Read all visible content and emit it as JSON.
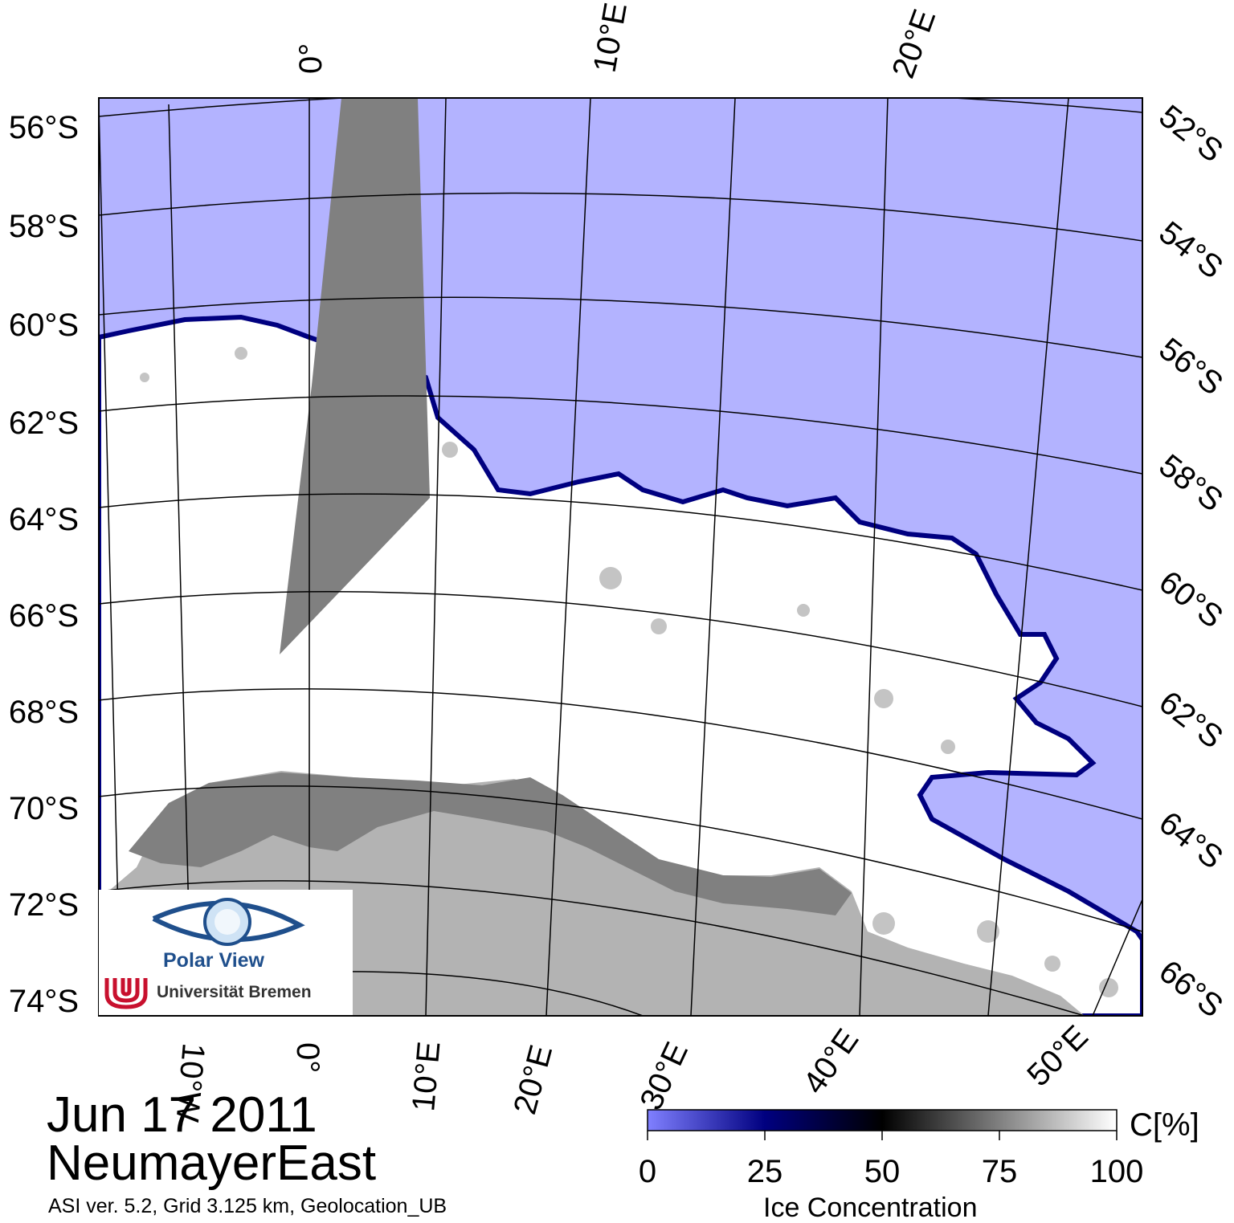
{
  "map": {
    "date": "Jun 17 2011",
    "region": "NeumayerEast",
    "info": "ASI ver. 5.2,  Grid 3.125 km, Geolocation_UB",
    "lat_left_labels": [
      "56°S",
      "58°S",
      "60°S",
      "62°S",
      "64°S",
      "66°S",
      "68°S",
      "70°S",
      "72°S",
      "74°S"
    ],
    "lat_right_labels": [
      "52°S",
      "54°S",
      "56°S",
      "58°S",
      "60°S",
      "62°S",
      "64°S",
      "66°S"
    ],
    "lon_top_labels": [
      "0°",
      "10°E",
      "20°E"
    ],
    "lon_bottom_labels": [
      "10°W",
      "0°",
      "10°E",
      "20°E",
      "30°E",
      "40°E",
      "50°E"
    ],
    "colors": {
      "open_water": "#b3b3ff",
      "ice": "#ffffff",
      "land": "#b3b3b3",
      "ice_shelf": "#808080",
      "no_data": "#808080",
      "ice_edge": "#000080"
    }
  },
  "colorbar": {
    "title": "Ice Concentration",
    "unit": "C[%]",
    "ticks": [
      "0",
      "25",
      "50",
      "75",
      "100"
    ],
    "gradient": [
      "#8080ff",
      "#000080",
      "#000000",
      "#808080",
      "#ffffff"
    ]
  },
  "logo": {
    "name": "Polar View",
    "institution": "Universität Bremen",
    "icon": "eye-globe-icon",
    "seal": "university-bremen-seal-icon"
  }
}
